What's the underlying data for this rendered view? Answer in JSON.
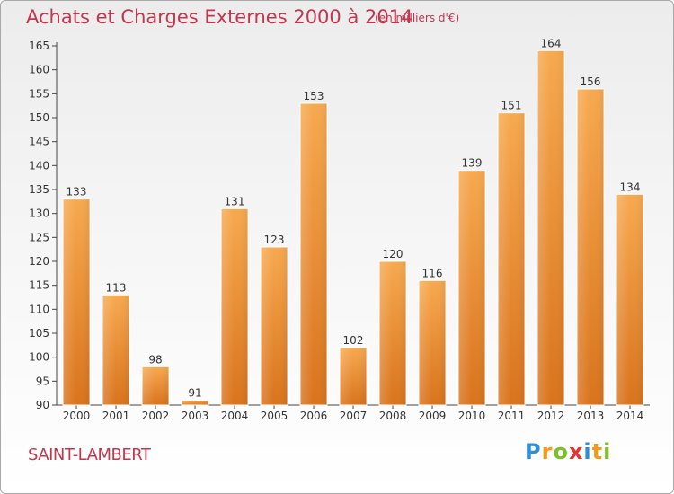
{
  "header": {
    "title": "Achats et Charges Externes 2000 à 2014",
    "unit": "(en milliers d'€)"
  },
  "footer": {
    "commune": "SAINT-LAMBERT",
    "logo_letters": [
      {
        "ch": "P",
        "color": "#2e8fd6"
      },
      {
        "ch": "r",
        "color": "#f29a1b"
      },
      {
        "ch": "o",
        "color": "#7cbf2a"
      },
      {
        "ch": "x",
        "color": "#e2342c"
      },
      {
        "ch": "i",
        "color": "#2e8fd6"
      },
      {
        "ch": "t",
        "color": "#f29a1b"
      },
      {
        "ch": "i",
        "color": "#7cbf2a"
      }
    ]
  },
  "chart_data": {
    "type": "bar",
    "categories": [
      "2000",
      "2001",
      "2002",
      "2003",
      "2004",
      "2005",
      "2006",
      "2007",
      "2008",
      "2009",
      "2010",
      "2011",
      "2012",
      "2013",
      "2014"
    ],
    "values": [
      133,
      113,
      98,
      91,
      131,
      123,
      153,
      102,
      120,
      116,
      139,
      151,
      164,
      156,
      134
    ],
    "title": "Achats et Charges Externes 2000 à 2014",
    "subtitle": "(en milliers d'€)",
    "xlabel": "",
    "ylabel": "",
    "ylim": [
      90,
      165
    ],
    "yticks": [
      90,
      95,
      100,
      105,
      110,
      115,
      120,
      125,
      130,
      135,
      140,
      145,
      150,
      155,
      160,
      165
    ],
    "grid": false,
    "colors": {
      "bar_top": "#f7a94f",
      "bar_bottom": "#d9731c",
      "label": "#333333",
      "axis": "#333333"
    }
  }
}
